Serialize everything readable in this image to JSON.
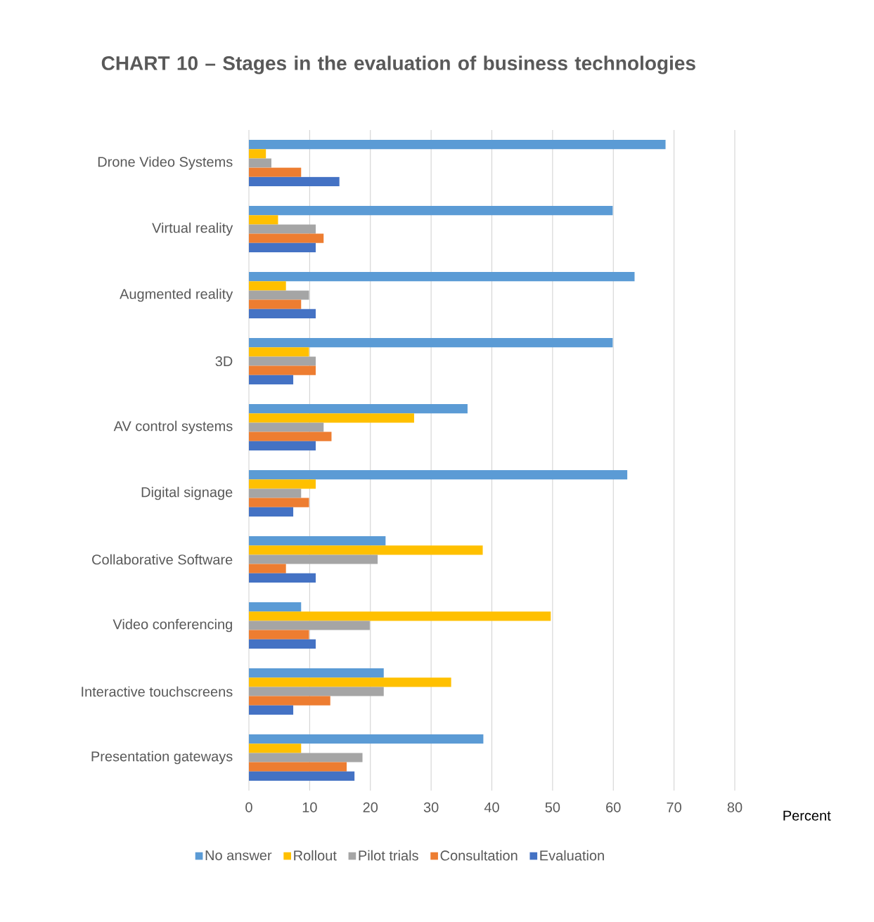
{
  "chart_data": {
    "type": "bar",
    "orientation": "horizontal",
    "title": "CHART 10 – Stages in the evaluation of business technologies",
    "xlabel": "Percent",
    "categories": [
      "Drone Video Systems",
      "Virtual reality",
      "Augmented reality",
      "3D",
      "AV control systems",
      "Digital signage",
      "Collaborative Software",
      "Video conferencing",
      "Interactive touchscreens",
      "Presentation gateways"
    ],
    "series": [
      {
        "name": "No answer",
        "color": "#5b9bd5",
        "values": [
          68.6,
          59.9,
          63.5,
          59.9,
          36.0,
          62.3,
          22.5,
          8.6,
          22.2,
          38.6
        ]
      },
      {
        "name": "Rollout",
        "color": "#ffc000",
        "values": [
          2.8,
          4.8,
          6.1,
          9.9,
          27.2,
          11.0,
          38.5,
          49.7,
          33.3,
          8.6
        ]
      },
      {
        "name": "Pilot trials",
        "color": "#a5a5a5",
        "values": [
          3.7,
          11.0,
          9.9,
          11.0,
          12.3,
          8.6,
          21.2,
          19.9,
          22.2,
          18.7
        ]
      },
      {
        "name": "Consultation",
        "color": "#ed7d31",
        "values": [
          8.6,
          12.3,
          8.6,
          11.0,
          13.6,
          9.9,
          6.1,
          9.9,
          13.4,
          16.1
        ]
      },
      {
        "name": "Evaluation",
        "color": "#4472c4",
        "values": [
          14.9,
          11.0,
          11.0,
          7.3,
          11.0,
          7.3,
          11.0,
          11.0,
          7.3,
          17.4
        ]
      }
    ],
    "xlim": [
      0,
      80
    ],
    "xticks": [
      0,
      10,
      20,
      30,
      40,
      50,
      60,
      70,
      80
    ],
    "grid": "x",
    "legend": "bottom"
  }
}
